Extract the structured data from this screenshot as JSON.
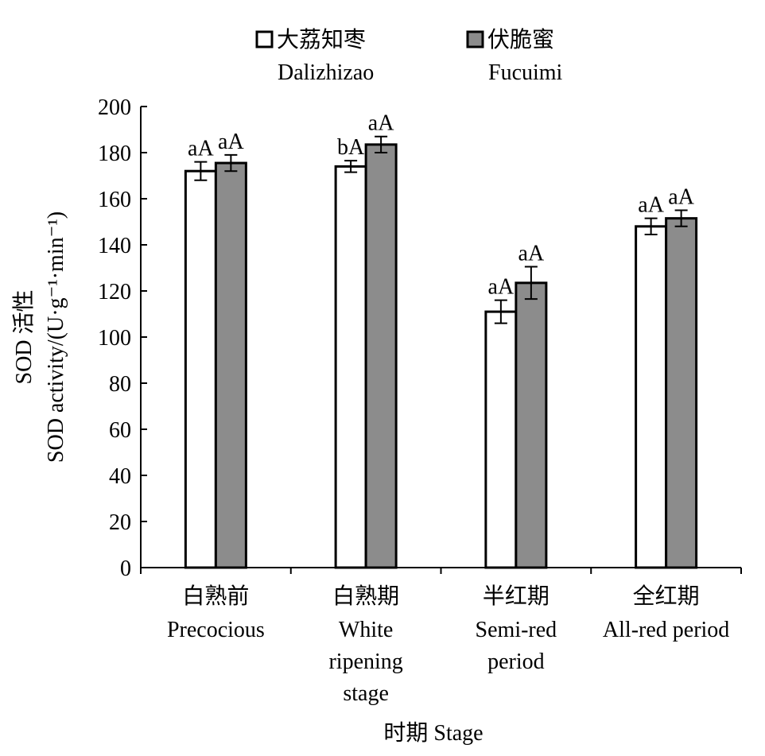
{
  "chart_data": {
    "type": "bar",
    "title": "",
    "ylabel_cn": "SOD 活性",
    "ylabel_en": "SOD activity/(U·g⁻¹·min⁻¹)",
    "xlabel": "时期 Stage",
    "ylim": [
      0,
      200
    ],
    "yticks": [
      0,
      20,
      40,
      60,
      80,
      100,
      120,
      140,
      160,
      180,
      200
    ],
    "grid": false,
    "legend_position": "top",
    "categories": [
      {
        "cn": "白熟前",
        "en": [
          "Precocious"
        ]
      },
      {
        "cn": "白熟期",
        "en": [
          "White",
          "ripening",
          "stage"
        ]
      },
      {
        "cn": "半红期",
        "en": [
          "Semi-red",
          "period"
        ]
      },
      {
        "cn": "全红期",
        "en": [
          "All-red period"
        ]
      }
    ],
    "series": [
      {
        "name_cn": "大荔知枣",
        "name_en": "Dalizhizao",
        "color": "#ffffff",
        "values": [
          172,
          174,
          111,
          148
        ],
        "errors": [
          4,
          2.5,
          5,
          3.5
        ],
        "labels": [
          "aA",
          "bA",
          "aA",
          "aA"
        ]
      },
      {
        "name_cn": "伏脆蜜",
        "name_en": "Fucuimi",
        "color": "#8c8c8c",
        "values": [
          175.5,
          183.5,
          123.5,
          151.5
        ],
        "errors": [
          3.5,
          3.5,
          7,
          3.5
        ],
        "labels": [
          "aA",
          "aA",
          "aA",
          "aA"
        ]
      }
    ]
  }
}
